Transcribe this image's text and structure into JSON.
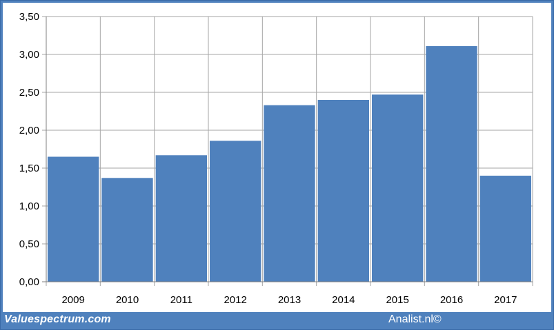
{
  "chart_data": {
    "type": "bar",
    "categories": [
      "2009",
      "2010",
      "2011",
      "2012",
      "2013",
      "2014",
      "2015",
      "2016",
      "2017"
    ],
    "values": [
      1.65,
      1.37,
      1.67,
      1.86,
      2.33,
      2.4,
      2.47,
      3.11,
      1.4
    ],
    "yticks": [
      "0,00",
      "0,50",
      "1,00",
      "1,50",
      "2,00",
      "2,50",
      "3,00",
      "3,50"
    ],
    "ylim": [
      0,
      3.5
    ],
    "grid": true,
    "bar_color": "#4f81bd",
    "title": "",
    "xlabel": "",
    "ylabel": ""
  },
  "footer": {
    "source_left": "Valuespectrum.com",
    "source_right": "Analist.nl©"
  },
  "colors": {
    "background": "#4f81bd",
    "plot_background": "#ffffff",
    "gridline": "#a6a6a6"
  }
}
